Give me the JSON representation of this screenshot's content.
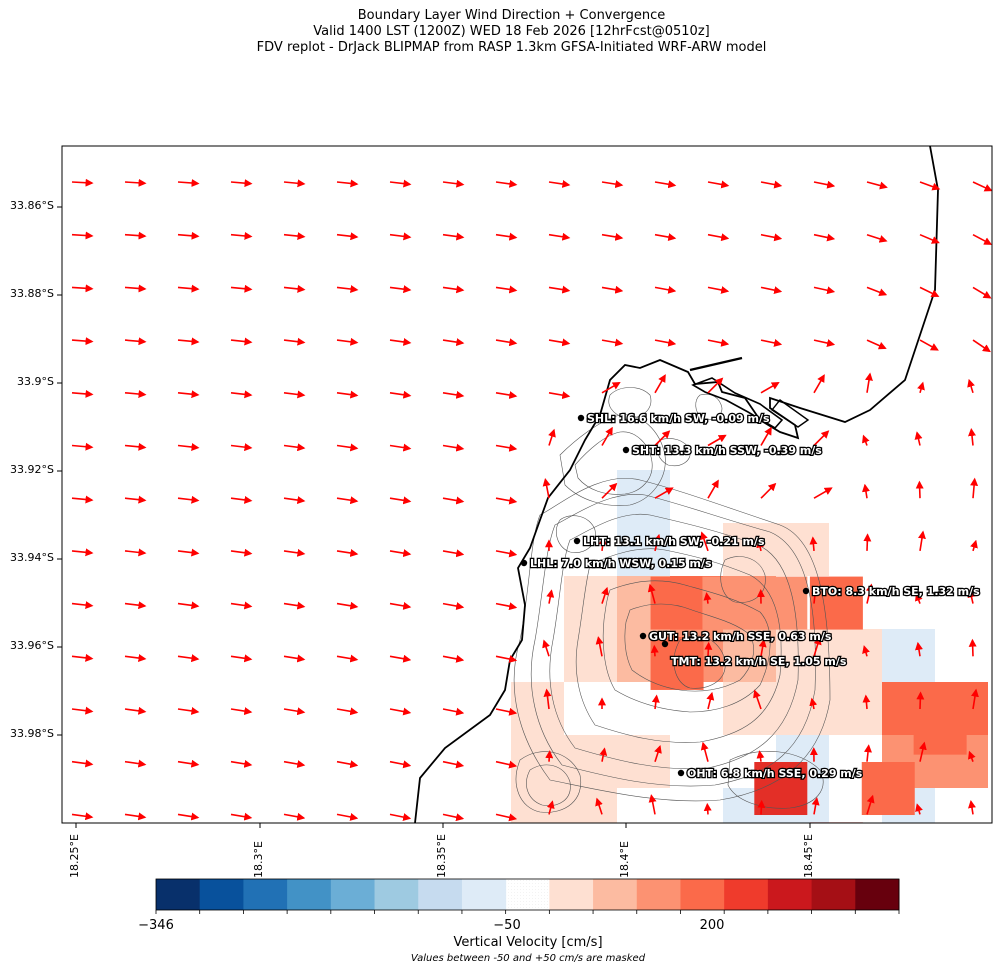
{
  "title": {
    "line1": "Boundary Layer Wind Direction + Convergence",
    "line2": "Valid 1400 LST (1200Z) WED 18 Feb 2026 [12hrFcst@0510z]",
    "line3": "FDV replot - DrJack BLIPMAP from RASP 1.3km GFSA-Initiated WRF-ARW model"
  },
  "colorbar": {
    "label": "Vertical Velocity [cm/s]",
    "note": "Values between -50 and +50 cm/s are masked",
    "tick_labels": [
      "−346",
      "−50",
      "200"
    ],
    "colors": [
      "#08306b",
      "#08519c",
      "#2171b5",
      "#4292c6",
      "#6baed6",
      "#9ecae1",
      "#c6dbef",
      "#deebf7",
      "#f7fbff",
      "#fee0d2",
      "#fcbba1",
      "#fc9272",
      "#fb6a4a",
      "#ef3b2c",
      "#cb181d",
      "#a50f15",
      "#67000d"
    ]
  },
  "chart_data": {
    "type": "heatmap",
    "xaxis": {
      "ticks": [
        "18.25°E",
        "18.3°E",
        "18.35°E",
        "18.4°E",
        "18.45°E"
      ],
      "range": [
        18.246,
        18.497
      ]
    },
    "yaxis": {
      "ticks": [
        "33.86°S",
        "33.88°S",
        "33.9°S",
        "33.92°S",
        "33.94°S",
        "33.96°S",
        "33.98°S"
      ],
      "range": [
        -34.003,
        -33.846
      ]
    },
    "vectors": "boundary layer wind direction arrows (red)",
    "vertical_velocity_cells": [
      {
        "lon": 18.412,
        "lat": -33.952,
        "level": "#fb6a4a"
      },
      {
        "lon": 18.426,
        "lat": -33.952,
        "level": "#fc9272"
      },
      {
        "lon": 18.44,
        "lat": -33.952,
        "level": "#fc9272"
      },
      {
        "lon": 18.455,
        "lat": -33.952,
        "level": "#fb6a4a"
      },
      {
        "lon": 18.412,
        "lat": -33.966,
        "level": "#fb6a4a"
      },
      {
        "lon": 18.483,
        "lat": -33.981,
        "level": "#fb6a4a"
      },
      {
        "lon": 18.469,
        "lat": -33.995,
        "level": "#fb6a4a"
      },
      {
        "lon": 18.455,
        "lat": -34.009,
        "level": "#e32f27"
      },
      {
        "lon": 18.44,
        "lat": -33.995,
        "level": "#e32f27"
      }
    ],
    "stations": [
      {
        "label": "SHL: 16.6 km/h SW, -0.09 m/s"
      },
      {
        "label": "SHT: 13.3 km/h SSW, -0.39 m/s"
      },
      {
        "label": "LHT: 13.1 km/h SW, -0.21 m/s"
      },
      {
        "label": "LHL: 7.0 km/h WSW, 0.15 m/s"
      },
      {
        "label": "BTO: 8.3 km/h SE, 1.32 m/s"
      },
      {
        "label": "GUT: 13.2 km/h SSE, 0.63 m/s"
      },
      {
        "label": "TMT: 13.2 km/h SE, 1.05 m/s"
      },
      {
        "label": "OHT: 6.8 km/h SSE, 0.29 m/s"
      }
    ]
  }
}
